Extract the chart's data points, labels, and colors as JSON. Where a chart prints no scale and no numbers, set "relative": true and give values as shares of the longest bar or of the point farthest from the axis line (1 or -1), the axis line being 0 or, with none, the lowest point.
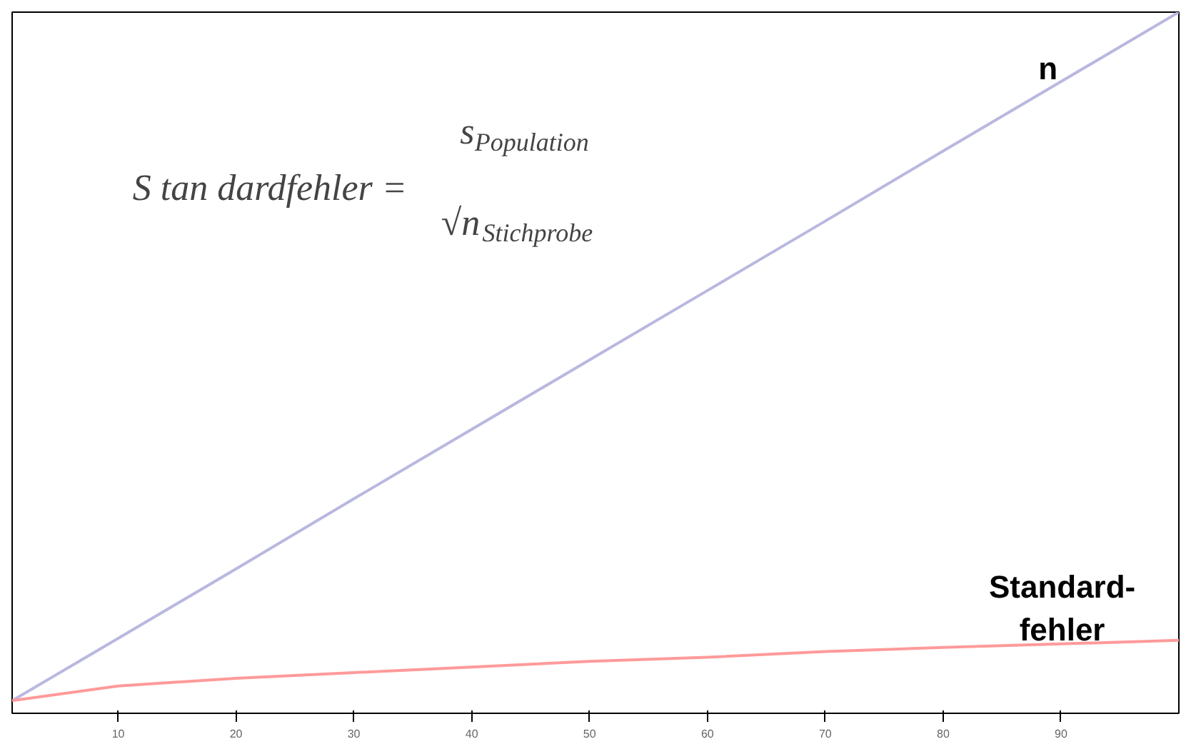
{
  "chart_data": {
    "type": "line",
    "relative": true,
    "x": [
      1,
      10,
      20,
      30,
      40,
      50,
      60,
      70,
      80,
      90,
      100
    ],
    "series": [
      {
        "name": "n",
        "color": "#b8b8e0",
        "values": [
          0.018,
          0.107,
          0.206,
          0.306,
          0.405,
          0.504,
          0.603,
          0.702,
          0.802,
          0.901,
          1.0
        ]
      },
      {
        "name": "Standard-\nfehler",
        "color": "#ff9a9a",
        "values": [
          0.018,
          0.039,
          0.05,
          0.058,
          0.066,
          0.074,
          0.08,
          0.088,
          0.094,
          0.099,
          0.104
        ]
      }
    ],
    "xlim": [
      1,
      100
    ],
    "xticks": [
      10,
      20,
      30,
      40,
      50,
      60,
      70,
      80,
      90
    ],
    "grid": false,
    "tick_labels": "x",
    "marker": "none",
    "annotations": [
      "S tan dardfehler =",
      "s$_{Population}$",
      "√n$_{Stichprobe}$"
    ]
  }
}
